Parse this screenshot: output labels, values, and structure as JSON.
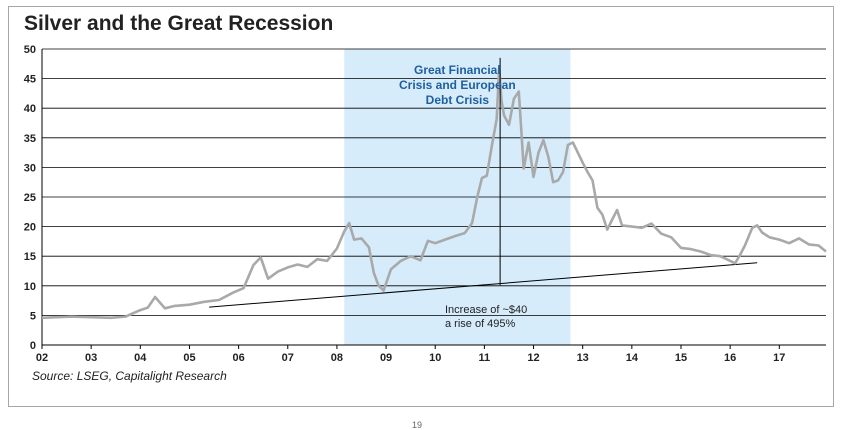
{
  "title": "Silver and the Great Recession",
  "source": "Source: LSEG, Capitalight Research",
  "page_number": "19",
  "colors": {
    "series": "#a9a9a9",
    "band": "#d6ecfb",
    "band_text": "#1f5fa0",
    "grid": "#000000",
    "trendline": "#000000"
  },
  "chart_data": {
    "type": "line",
    "title": "Silver and the Great Recession",
    "xlabel": "",
    "ylabel": "",
    "xlim": [
      2002.0,
      2017.95
    ],
    "ylim": [
      0,
      50
    ],
    "x_tick_labels": [
      "02",
      "03",
      "04",
      "05",
      "06",
      "07",
      "08",
      "09",
      "10",
      "11",
      "12",
      "13",
      "14",
      "15",
      "16",
      "17"
    ],
    "x_tick_values": [
      2002,
      2003,
      2004,
      2005,
      2006,
      2007,
      2008,
      2009,
      2010,
      2011,
      2012,
      2013,
      2014,
      2015,
      2016,
      2017
    ],
    "y_ticks": [
      0,
      5,
      10,
      15,
      20,
      25,
      30,
      35,
      40,
      45,
      50
    ],
    "grid": "horizontal",
    "series": [
      {
        "x": [
          2002.0,
          2002.3,
          2002.6,
          2003.0,
          2003.4,
          2003.7,
          2004.0,
          2004.15,
          2004.3,
          2004.5,
          2004.7,
          2005.0,
          2005.3,
          2005.6,
          2005.9,
          2006.1,
          2006.3,
          2006.45,
          2006.6,
          2006.8,
          2007.0,
          2007.2,
          2007.4,
          2007.6,
          2007.8,
          2008.0,
          2008.15,
          2008.25,
          2008.35,
          2008.5,
          2008.65,
          2008.75,
          2008.85,
          2008.95,
          2009.1,
          2009.3,
          2009.5,
          2009.7,
          2009.85,
          2010.0,
          2010.2,
          2010.4,
          2010.6,
          2010.75,
          2010.85,
          2010.95,
          2011.05,
          2011.15,
          2011.25,
          2011.3,
          2011.35,
          2011.4,
          2011.5,
          2011.6,
          2011.7,
          2011.75,
          2011.8,
          2011.9,
          2012.0,
          2012.1,
          2012.2,
          2012.3,
          2012.4,
          2012.5,
          2012.6,
          2012.7,
          2012.8,
          2012.9,
          2013.0,
          2013.1,
          2013.2,
          2013.3,
          2013.4,
          2013.5,
          2013.6,
          2013.7,
          2013.8,
          2014.0,
          2014.2,
          2014.4,
          2014.6,
          2014.8,
          2015.0,
          2015.2,
          2015.4,
          2015.6,
          2015.8,
          2016.0,
          2016.1,
          2016.2,
          2016.3,
          2016.45,
          2016.55,
          2016.65,
          2016.8,
          2017.0,
          2017.2,
          2017.4,
          2017.6,
          2017.8,
          2017.95
        ],
        "y": [
          4.6,
          4.7,
          4.8,
          4.7,
          4.6,
          4.8,
          5.9,
          6.3,
          8.1,
          6.2,
          6.6,
          6.8,
          7.3,
          7.6,
          8.9,
          9.6,
          13.5,
          14.8,
          11.2,
          12.4,
          13.1,
          13.6,
          13.2,
          14.5,
          14.2,
          16.3,
          19.2,
          20.6,
          17.8,
          18.0,
          16.5,
          12.2,
          10.0,
          9.2,
          12.8,
          14.2,
          15.0,
          14.3,
          17.6,
          17.2,
          17.8,
          18.4,
          18.9,
          20.6,
          24.8,
          28.2,
          28.6,
          33.6,
          38.2,
          46.8,
          41.2,
          38.8,
          37.2,
          41.6,
          42.8,
          36.5,
          29.8,
          34.2,
          28.4,
          32.5,
          34.6,
          31.8,
          27.5,
          27.8,
          29.2,
          33.8,
          34.2,
          32.5,
          30.8,
          29.2,
          27.8,
          23.2,
          22.0,
          19.5,
          21.2,
          22.8,
          20.2,
          20.0,
          19.8,
          20.5,
          18.8,
          18.2,
          16.4,
          16.2,
          15.8,
          15.2,
          15.0,
          14.2,
          13.8,
          15.2,
          16.8,
          19.8,
          20.2,
          19.0,
          18.2,
          17.8,
          17.2,
          18.0,
          17.0,
          16.8,
          15.8
        ]
      }
    ],
    "shaded_band": {
      "x_start": 2008.15,
      "x_end": 2012.75
    },
    "annotations": {
      "band_label": [
        "Great Financial",
        "Crisis and European",
        "Debt Crisis"
      ],
      "note": [
        "Increase of ~$40",
        "a rise of 495%"
      ]
    },
    "trendline": {
      "x": [
        2005.4,
        2016.55
      ],
      "y": [
        6.4,
        13.9
      ]
    },
    "vertical_marker": {
      "x": 2011.32,
      "y_from": 10.1,
      "y_to": 48.5
    }
  }
}
